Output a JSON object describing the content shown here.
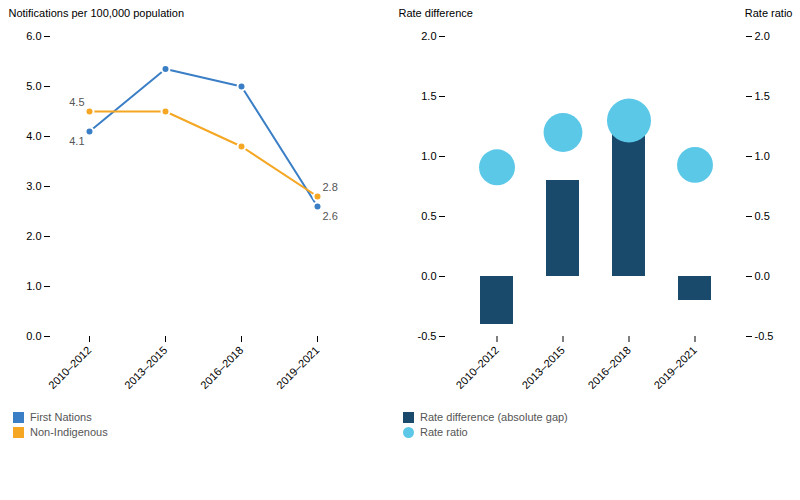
{
  "chart_data": [
    {
      "type": "line",
      "categories": [
        "2010–2012",
        "2013–2015",
        "2016–2018",
        "2019–2021"
      ],
      "series": [
        {
          "name": "First Nations",
          "color": "#3A7EC6",
          "marker": "circle",
          "values": [
            4.1,
            5.35,
            5.0,
            2.6
          ]
        },
        {
          "name": "Non-Indigenous",
          "color": "#F5A623",
          "marker": "circle",
          "values": [
            4.5,
            4.5,
            3.8,
            2.8
          ]
        }
      ],
      "ylabel": "Notifications per 100,000 population",
      "ylim": [
        0.0,
        6.0
      ],
      "yticks": [
        {
          "value": 0,
          "label": "0.0"
        },
        {
          "value": 1,
          "label": "1.0"
        },
        {
          "value": 2,
          "label": "2.0"
        },
        {
          "value": 3,
          "label": "3.0"
        },
        {
          "value": 4,
          "label": "4.0"
        },
        {
          "value": 5,
          "label": "5.0"
        },
        {
          "value": 6,
          "label": "6.0"
        }
      ],
      "annotations": [
        {
          "text": "4.5",
          "series": "Non-Indigenous",
          "x": "2010–2012",
          "y": 4.5
        },
        {
          "text": "4.1",
          "series": "First Nations",
          "x": "2010–2012",
          "y": 4.1
        },
        {
          "text": "2.8",
          "series": "Non-Indigenous",
          "x": "2019–2021",
          "y": 2.8
        },
        {
          "text": "2.6",
          "series": "First Nations",
          "x": "2019–2021",
          "y": 2.6
        }
      ],
      "grid": false,
      "legend": "lower left"
    },
    {
      "type": "bar",
      "categories": [
        "2010–2012",
        "2013–2015",
        "2016–2018",
        "2019–2021"
      ],
      "series": [
        {
          "name": "Rate difference (absolute gap)",
          "type": "bar",
          "color": "#1A4A6B",
          "values": [
            -0.4,
            0.8,
            1.2,
            -0.2
          ]
        },
        {
          "name": "Rate ratio",
          "type": "scatter",
          "axis": "y2",
          "color": "#5BC8E8",
          "marker": "circle",
          "values": [
            0.91,
            1.2,
            1.3,
            0.93
          ],
          "sizes": [
            600,
            700,
            900,
            600
          ]
        }
      ],
      "ylabel": "Rate difference",
      "ylim": [
        -0.5,
        2.0
      ],
      "yticks": [
        -0.5,
        {
          "value": 0,
          "label": "0.0"
        },
        0.5,
        {
          "value": 1,
          "label": "1.0"
        },
        1.5,
        {
          "value": 2,
          "label": "2.0"
        }
      ],
      "y2label": "Rate ratio",
      "y2lim": [
        -0.5,
        2.0
      ],
      "y2ticks": [
        -0.5,
        {
          "value": 0,
          "label": "0.0"
        },
        0.5,
        {
          "value": 1,
          "label": "1.0"
        },
        1.5,
        {
          "value": 2,
          "label": "2.0"
        }
      ],
      "grid": false,
      "legend": "lower left"
    }
  ]
}
